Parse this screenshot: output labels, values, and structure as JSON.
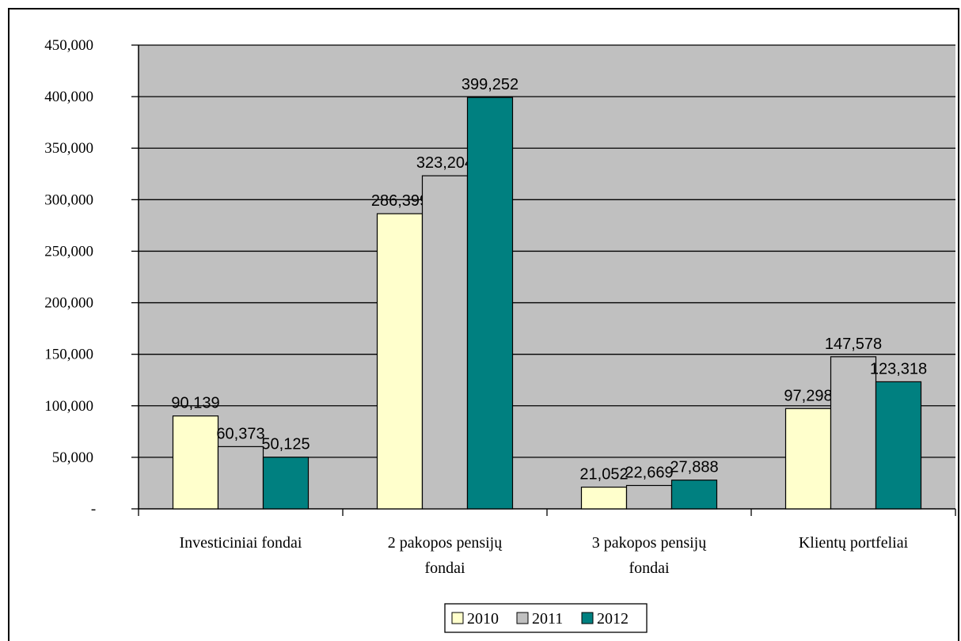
{
  "chart_data": {
    "type": "bar",
    "categories": [
      [
        "Investiciniai fondai"
      ],
      [
        "2 pakopos pensijų",
        "fondai"
      ],
      [
        "3 pakopos pensijų",
        "fondai"
      ],
      [
        "Klientų portfeliai"
      ]
    ],
    "series": [
      {
        "name": "2010",
        "color": "#FFFFCC",
        "values": [
          90139,
          286399,
          21052,
          97298
        ],
        "labels": [
          "90,139",
          "286,399",
          "21,052",
          "97,298"
        ]
      },
      {
        "name": "2011",
        "color": "#C0C0C0",
        "values": [
          60373,
          323204,
          22669,
          147578
        ],
        "labels": [
          "60,373",
          "323,204",
          "22,669",
          "147,578"
        ]
      },
      {
        "name": "2012",
        "color": "#008080",
        "values": [
          50125,
          399252,
          27888,
          123318
        ],
        "labels": [
          "50,125",
          "399,252",
          "27,888",
          "123,318"
        ]
      }
    ],
    "ylim": [
      0,
      450000
    ],
    "yticks": [
      0,
      50000,
      100000,
      150000,
      200000,
      250000,
      300000,
      350000,
      400000,
      450000
    ],
    "ytick_labels": [
      "-",
      "50,000",
      "100,000",
      "150,000",
      "200,000",
      "250,000",
      "300,000",
      "350,000",
      "400,000",
      "450,000"
    ],
    "plot_background": "#C0C0C0",
    "grid": true,
    "legend_position": "bottom"
  }
}
